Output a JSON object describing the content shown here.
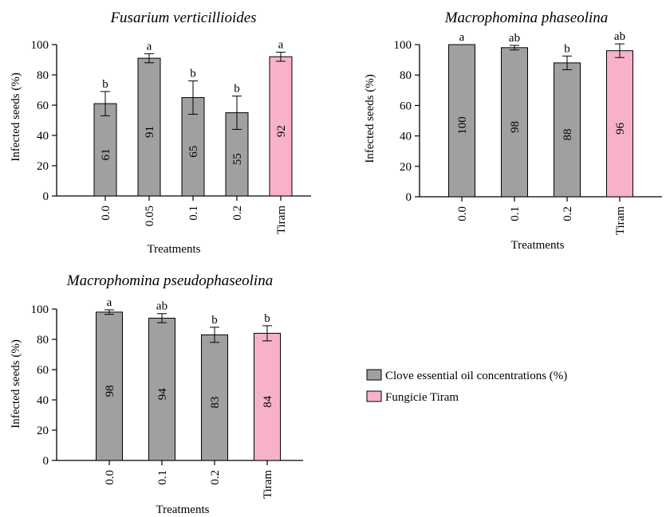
{
  "colors": {
    "clove": "#a0a0a0",
    "tiram": "#f7b1cb",
    "stroke": "#000000"
  },
  "legend": {
    "items": [
      {
        "label": "Clove essential oil concentrations (%)",
        "color": "#a0a0a0"
      },
      {
        "label": "Fungicie Tiram",
        "color": "#f7b1cb"
      }
    ]
  },
  "chart_data": [
    {
      "type": "bar",
      "title": "Fusarium verticillioides",
      "xlabel": "Treatments",
      "ylabel": "Infected seeds (%)",
      "ylim": [
        0,
        100
      ],
      "yticks": [
        0,
        20,
        40,
        60,
        80,
        100
      ],
      "categories": [
        "0.0",
        "0.05",
        "0.1",
        "0.2",
        "Tiram"
      ],
      "values": [
        61,
        91,
        65,
        55,
        92
      ],
      "errors": [
        8,
        3,
        11,
        11,
        3
      ],
      "value_labels": [
        "61",
        "91",
        "65",
        "55",
        "92"
      ],
      "letters": [
        "b",
        "a",
        "b",
        "b",
        "a"
      ],
      "bar_groups": [
        "clove",
        "clove",
        "clove",
        "clove",
        "tiram"
      ]
    },
    {
      "type": "bar",
      "title": "Macrophomina phaseolina",
      "xlabel": "Treatments",
      "ylabel": "Infected seeds (%)",
      "ylim": [
        0,
        100
      ],
      "yticks": [
        0,
        20,
        40,
        60,
        80,
        100
      ],
      "categories": [
        "0.0",
        "0.1",
        "0.2",
        "Tiram"
      ],
      "values": [
        100,
        98,
        88,
        96
      ],
      "errors": [
        0,
        1.5,
        4.5,
        4.5
      ],
      "value_labels": [
        "100",
        "98",
        "88",
        "96"
      ],
      "letters": [
        "a",
        "ab",
        "b",
        "ab"
      ],
      "bar_groups": [
        "clove",
        "clove",
        "clove",
        "tiram"
      ]
    },
    {
      "type": "bar",
      "title": "Macrophomina pseudophaseolina",
      "xlabel": "Treatments",
      "ylabel": "Infected seeds (%)",
      "ylim": [
        0,
        100
      ],
      "yticks": [
        0,
        20,
        40,
        60,
        80,
        100
      ],
      "categories": [
        "0.0",
        "0.1",
        "0.2",
        "Tiram"
      ],
      "values": [
        98,
        94,
        83,
        84
      ],
      "errors": [
        1.5,
        3,
        5,
        5
      ],
      "value_labels": [
        "98",
        "94",
        "83",
        "84"
      ],
      "letters": [
        "a",
        "ab",
        "b",
        "b"
      ],
      "bar_groups": [
        "clove",
        "clove",
        "clove",
        "tiram"
      ]
    }
  ]
}
